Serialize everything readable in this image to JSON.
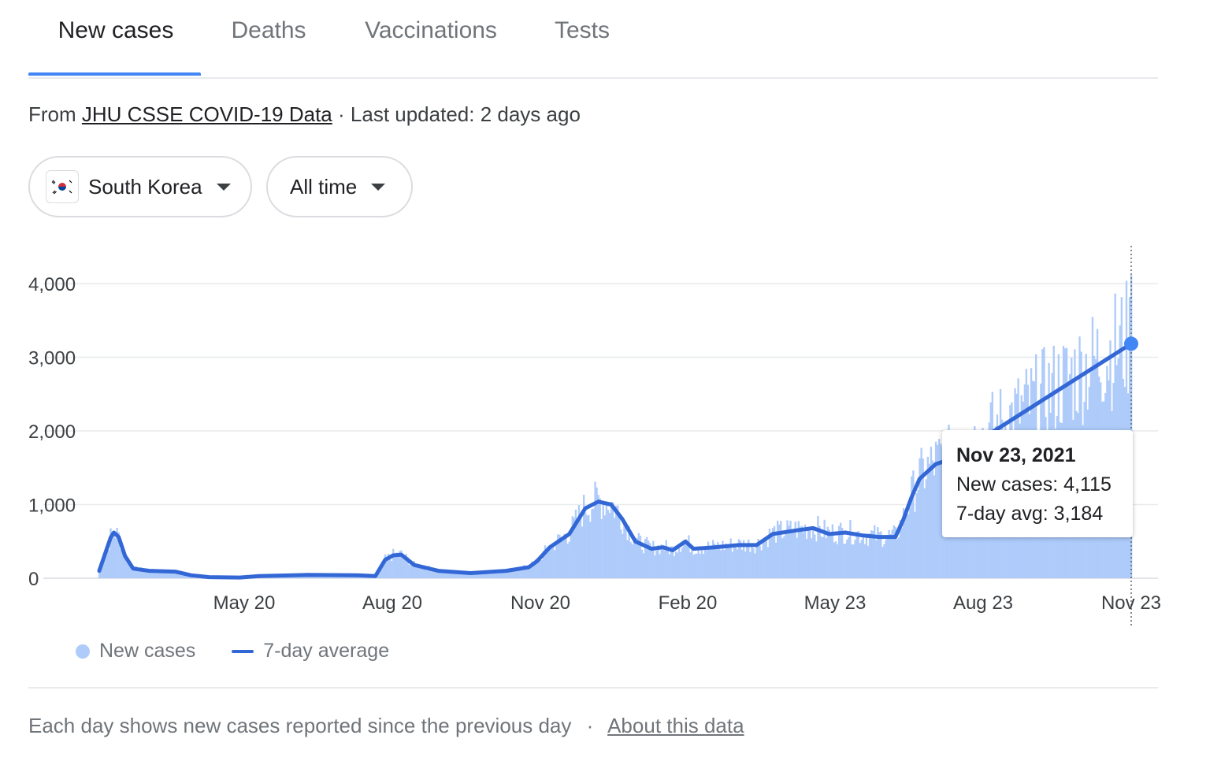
{
  "tabs": [
    {
      "label": "New cases",
      "active": true
    },
    {
      "label": "Deaths",
      "active": false
    },
    {
      "label": "Vaccinations",
      "active": false
    },
    {
      "label": "Tests",
      "active": false
    }
  ],
  "source": {
    "prefix": "From",
    "link": "JHU CSSE COVID-19 Data",
    "updated": "· Last updated: 2 days ago"
  },
  "filters": {
    "country": "South Korea",
    "country_flag_icon": "south-korea-flag-icon",
    "range": "All time"
  },
  "tooltip": {
    "date": "Nov 23, 2021",
    "new_cases": "New cases: 4,115",
    "avg": "7-day avg: 3,184"
  },
  "legend": {
    "new_cases": "New cases",
    "avg": "7-day average"
  },
  "footer": {
    "text": "Each day shows new cases reported since the previous day",
    "separator": "·",
    "link": "About this data"
  },
  "colors": {
    "accent": "#4285f4",
    "bars": "#aecbfa",
    "line": "#3367d6",
    "grid": "#e8eaed"
  },
  "chart_data": {
    "type": "bar",
    "ylim": [
      0,
      4000
    ],
    "yticks": [
      0,
      1000,
      2000,
      3000,
      4000
    ],
    "ytick_labels": [
      "0",
      "1,000",
      "2,000",
      "3,000",
      "4,000"
    ],
    "xticks": [
      "May 20",
      "Aug 20",
      "Nov 20",
      "Feb 20",
      "May 23",
      "Aug 23",
      "Nov 23"
    ],
    "series": [
      {
        "name": "7-day average",
        "points": [
          [
            "Feb 23",
            100
          ],
          [
            "Mar 1",
            550
          ],
          [
            "Mar 3",
            620
          ],
          [
            "Mar 6",
            560
          ],
          [
            "Mar 10",
            300
          ],
          [
            "Mar 15",
            130
          ],
          [
            "Mar 25",
            100
          ],
          [
            "Apr 10",
            90
          ],
          [
            "Apr 20",
            40
          ],
          [
            "May 1",
            15
          ],
          [
            "May 20",
            10
          ],
          [
            "Jun 1",
            30
          ],
          [
            "Jul 1",
            45
          ],
          [
            "Aug 1",
            40
          ],
          [
            "Aug 12",
            30
          ],
          [
            "Aug 18",
            250
          ],
          [
            "Aug 23",
            310
          ],
          [
            "Aug 28",
            320
          ],
          [
            "Sep 5",
            180
          ],
          [
            "Sep 20",
            100
          ],
          [
            "Oct 10",
            70
          ],
          [
            "Nov 1",
            100
          ],
          [
            "Nov 15",
            150
          ],
          [
            "Nov 20",
            230
          ],
          [
            "Nov 28",
            420
          ],
          [
            "Dec 10",
            600
          ],
          [
            "Dec 20",
            950
          ],
          [
            "Dec 28",
            1040
          ],
          [
            "Jan 5",
            1000
          ],
          [
            "Jan 12",
            800
          ],
          [
            "Jan 20",
            500
          ],
          [
            "Jan 30",
            400
          ],
          [
            "Feb 6",
            420
          ],
          [
            "Feb 12",
            380
          ],
          [
            "Feb 20",
            500
          ],
          [
            "Feb 25",
            400
          ],
          [
            "Mar 10",
            420
          ],
          [
            "Mar 25",
            450
          ],
          [
            "Apr 5",
            450
          ],
          [
            "Apr 15",
            600
          ],
          [
            "Apr 30",
            650
          ],
          [
            "May 10",
            680
          ],
          [
            "May 20",
            600
          ],
          [
            "May 30",
            620
          ],
          [
            "Jun 10",
            580
          ],
          [
            "Jun 20",
            560
          ],
          [
            "Jun 30",
            560
          ],
          [
            "Jul 5",
            800
          ],
          [
            "Jul 10",
            1100
          ],
          [
            "Jul 15",
            1350
          ],
          [
            "Jul 25",
            1550
          ],
          [
            "Aug 1",
            1600
          ],
          [
            "Aug 3",
            1620
          ],
          [
            "Nov 23",
            3184
          ]
        ]
      },
      {
        "name": "New cases",
        "points": [
          [
            "Nov 23",
            4115
          ]
        ]
      }
    ]
  }
}
